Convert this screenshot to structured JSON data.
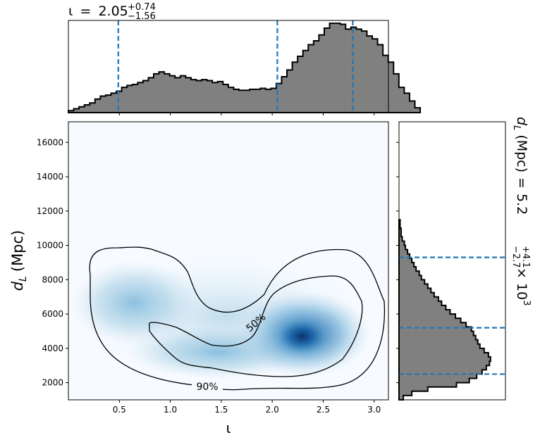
{
  "chart_data": {
    "type": "corner",
    "x_label": "ι",
    "y_label_main": "d",
    "y_label_sub": "L",
    "y_label_unit": "(Mpc)",
    "x_ticks": [
      "0.5",
      "1.0",
      "1.5",
      "2.0",
      "2.5",
      "3.0"
    ],
    "x_tick_values": [
      0.5,
      1.0,
      1.5,
      2.0,
      2.5,
      3.0
    ],
    "y_ticks": [
      "2000",
      "4000",
      "6000",
      "8000",
      "10000",
      "12000",
      "14000",
      "16000"
    ],
    "y_tick_values": [
      2000,
      4000,
      6000,
      8000,
      10000,
      12000,
      14000,
      16000
    ],
    "x_range": [
      0.0,
      3.14
    ],
    "y_range": [
      1000,
      17200
    ],
    "top_title": {
      "param": "ι",
      "eq": "=",
      "value": "2.05",
      "upper": "+0.74",
      "lower": "−1.56"
    },
    "right_title": {
      "param": "d",
      "sub": "L",
      "unit": "(Mpc)",
      "eq": "=",
      "value": "5.2",
      "upper": "+4.1",
      "lower": "−2.7",
      "times": "×",
      "base": "10",
      "exponent": "3"
    },
    "contour_labels": [
      "50%",
      "90%"
    ],
    "iota_quantiles": [
      0.49,
      2.05,
      2.79
    ],
    "dl_quantiles": [
      2500,
      5200,
      9300
    ],
    "iota_hist": {
      "x_start": 0.0,
      "bin_width": 0.0523,
      "values": [
        2,
        4,
        6,
        8,
        10,
        14,
        17,
        18,
        20,
        22,
        26,
        28,
        29,
        31,
        33,
        36,
        40,
        42,
        40,
        38,
        36,
        38,
        36,
        34,
        33,
        34,
        33,
        31,
        32,
        29,
        26,
        24,
        23,
        23,
        24,
        24,
        25,
        24,
        25,
        30,
        37,
        44,
        52,
        58,
        64,
        70,
        74,
        80,
        87,
        92,
        92,
        91,
        86,
        88,
        86,
        84,
        79,
        76,
        70,
        59,
        52,
        40,
        26,
        20,
        12,
        5
      ]
    },
    "dl_hist": {
      "y_start": 1000,
      "bin_width": 250,
      "values": [
        4,
        12,
        27,
        54,
        66,
        73,
        78,
        82,
        85,
        86,
        84,
        80,
        76,
        74,
        72,
        70,
        68,
        63,
        58,
        53,
        48,
        44,
        40,
        37,
        33,
        30,
        27,
        24,
        21,
        19,
        16,
        14,
        12,
        10,
        8,
        6,
        5,
        3,
        2,
        2,
        1,
        1
      ]
    },
    "colors": {
      "hist_fill": "#808080",
      "hist_edge": "#000000",
      "quantile_line": "#1f77b4",
      "density_low": "#f7fbff",
      "density_high": "#08306b"
    }
  }
}
